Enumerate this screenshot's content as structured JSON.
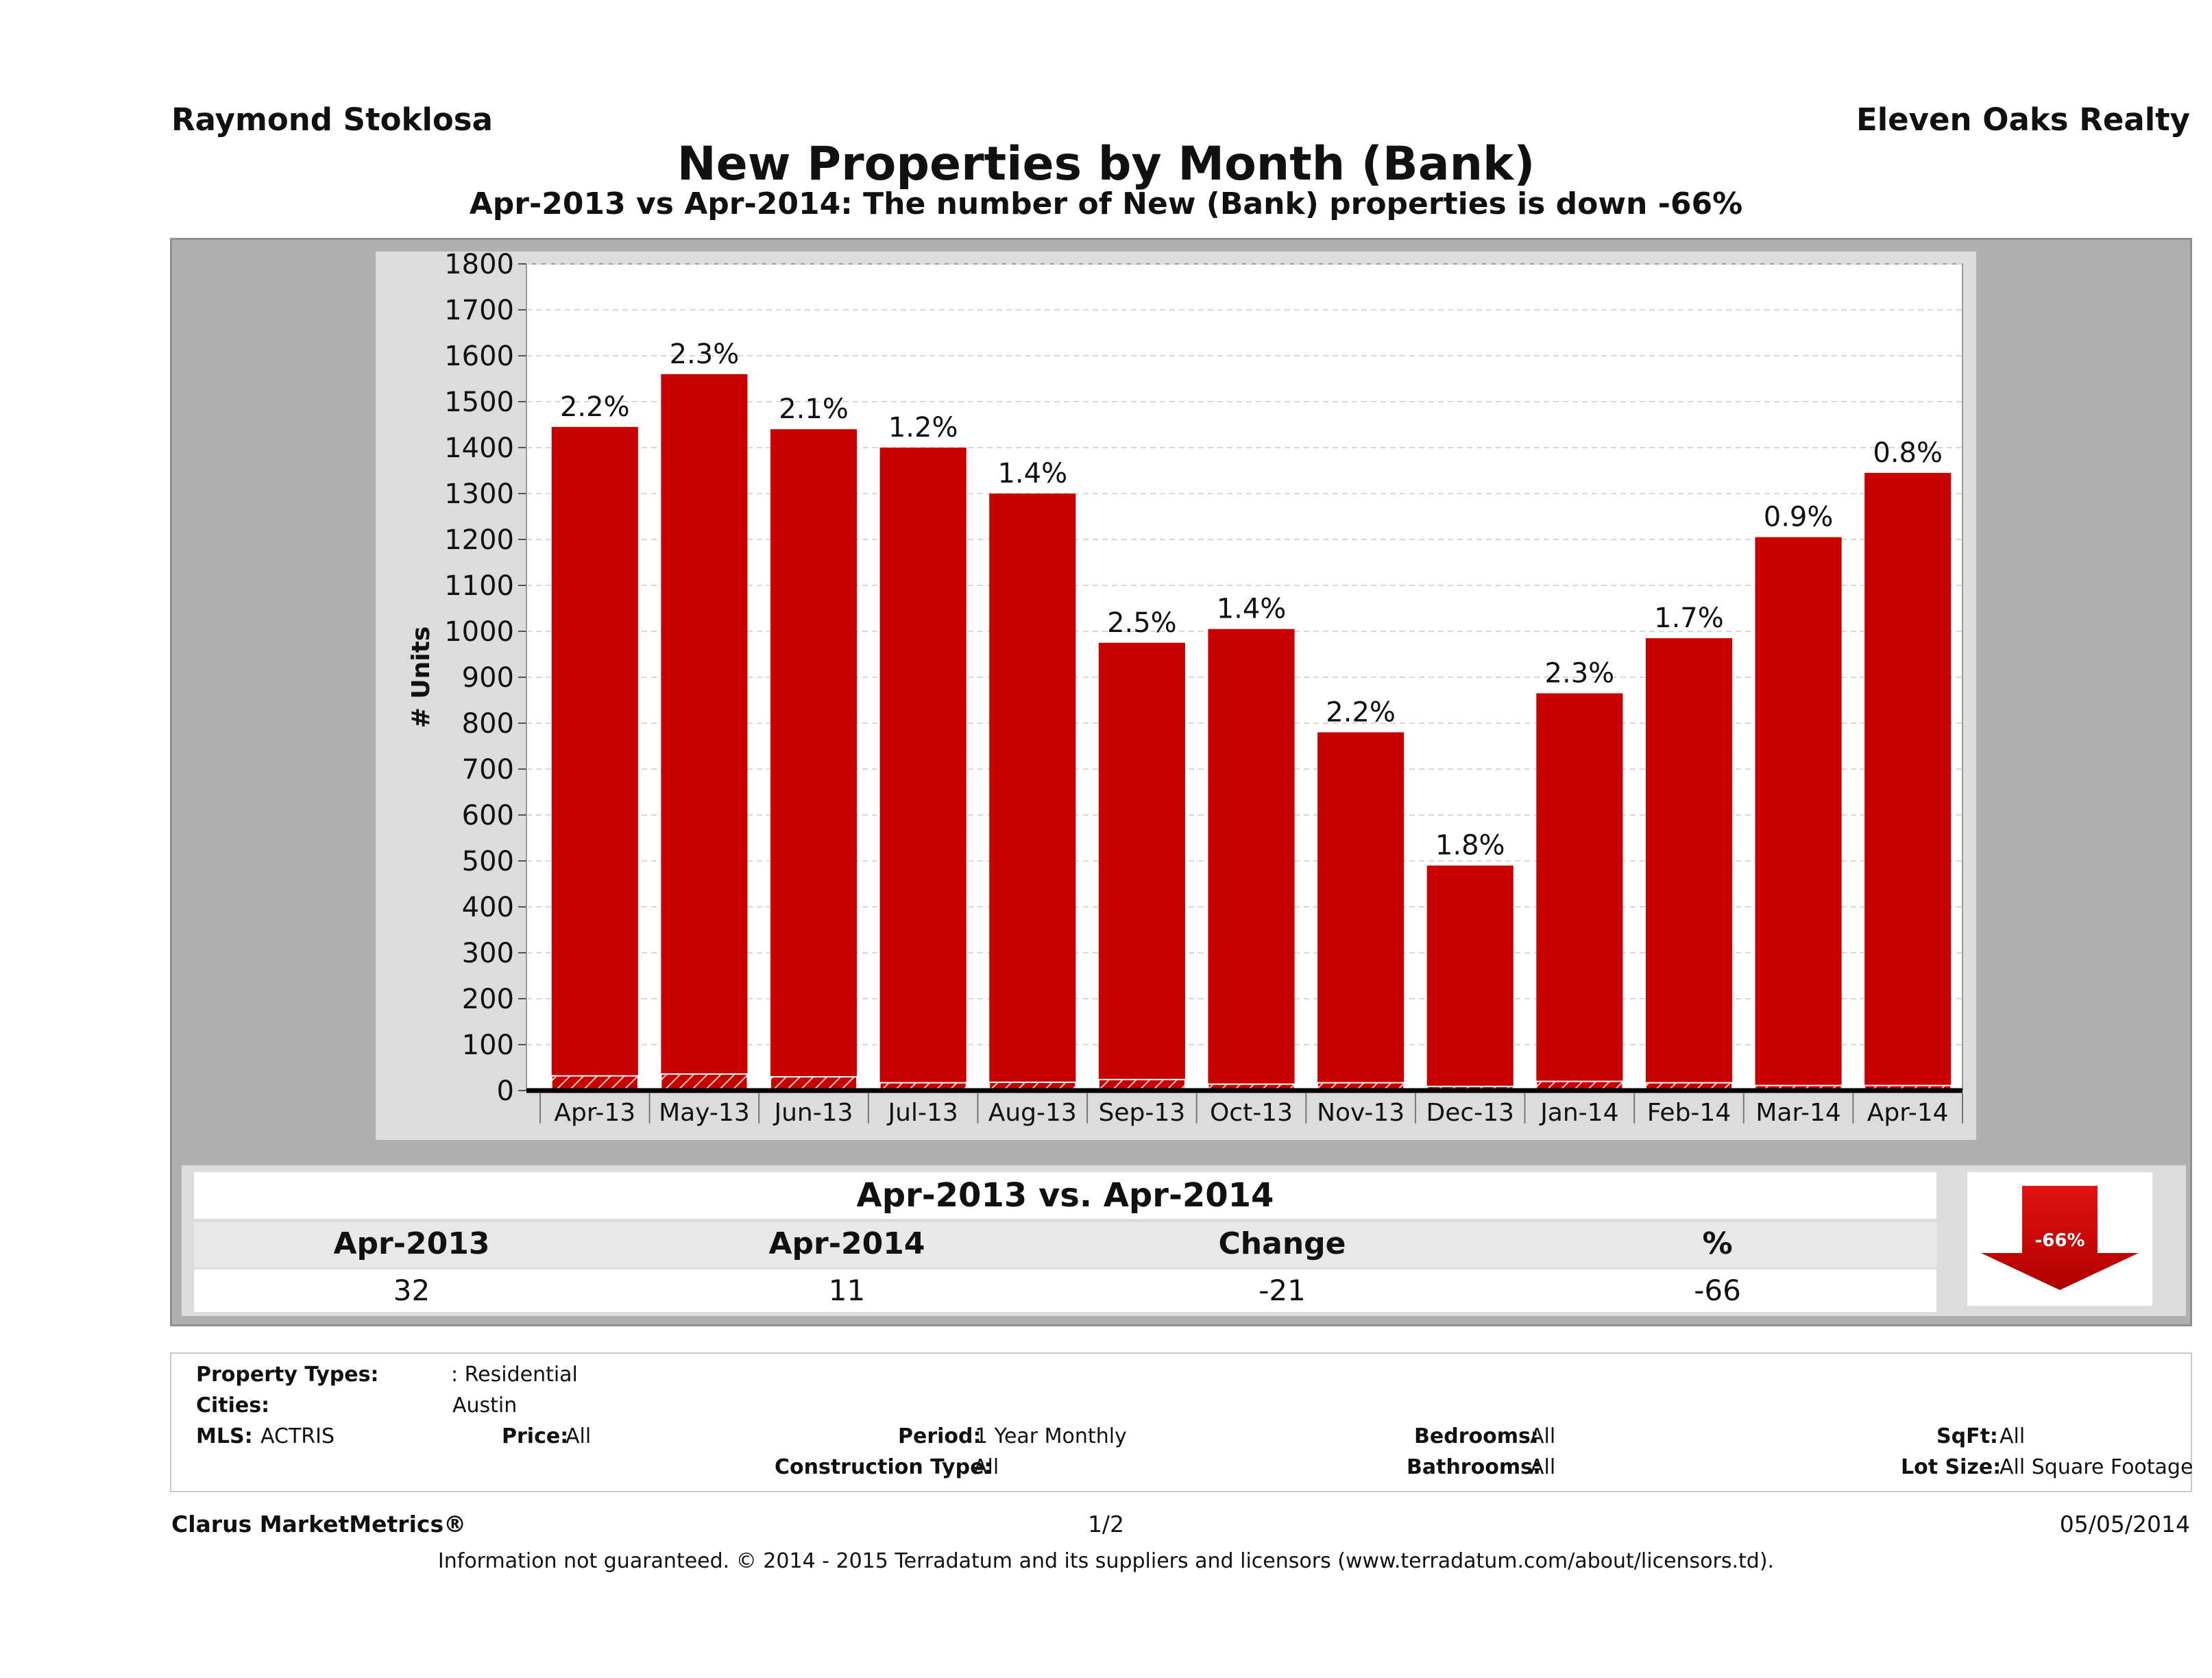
{
  "header": {
    "agent_name": "Raymond Stoklosa",
    "company_name": "Eleven Oaks Realty"
  },
  "chart_data": {
    "type": "bar",
    "title": "New Properties by Month (Bank)",
    "subtitle": "Apr-2013 vs Apr-2014: The number of New (Bank)  properties is down -66%",
    "xlabel": "",
    "ylabel": "# Units",
    "ylim": [
      0,
      1800
    ],
    "yticks": [
      0,
      100,
      200,
      300,
      400,
      500,
      600,
      700,
      800,
      900,
      1000,
      1100,
      1200,
      1300,
      1400,
      1500,
      1600,
      1700,
      1800
    ],
    "grid": true,
    "categories": [
      "Apr-13",
      "May-13",
      "Jun-13",
      "Jul-13",
      "Aug-13",
      "Sep-13",
      "Oct-13",
      "Nov-13",
      "Dec-13",
      "Jan-14",
      "Feb-14",
      "Mar-14",
      "Apr-14"
    ],
    "series": [
      {
        "values": [
          1445,
          1560,
          1440,
          1400,
          1300,
          975,
          1005,
          780,
          490,
          865,
          985,
          1205,
          1345
        ]
      },
      {
        "values": [
          32,
          36,
          30,
          17,
          18,
          24,
          14,
          17,
          9,
          20,
          17,
          11,
          11
        ]
      }
    ],
    "data_labels": [
      "2.2%",
      "2.3%",
      "2.1%",
      "1.2%",
      "1.4%",
      "2.5%",
      "1.4%",
      "2.2%",
      "1.8%",
      "2.3%",
      "1.7%",
      "0.9%",
      "0.8%"
    ],
    "colors": {
      "bar": "#c80000",
      "bank": "#c80000",
      "plot_bg": "#ffffff",
      "panel_bg": "#dcdcdc"
    }
  },
  "summary": {
    "title": "Apr-2013 vs. Apr-2014",
    "headers": [
      "Apr-2013",
      "Apr-2014",
      "Change",
      "%"
    ],
    "values": [
      "32",
      "11",
      "-21",
      "-66"
    ],
    "indicator_label": "-66%",
    "indicator_color": "#d40000"
  },
  "filters": {
    "property_types_label": "Property Types:",
    "property_types_value": ": Residential",
    "cities_label": "Cities:",
    "cities_value": "Austin",
    "mls_label": "MLS:",
    "mls_value": "ACTRIS",
    "price_label": "Price:",
    "price_value": "All",
    "period_label": "Period:",
    "period_value": "1 Year Monthly",
    "construction_label": "Construction Type:",
    "construction_value": "All",
    "bedrooms_label": "Bedrooms:",
    "bedrooms_value": "All",
    "bathrooms_label": "Bathrooms:",
    "bathrooms_value": "All",
    "sqft_label": "SqFt:",
    "sqft_value": "All",
    "lot_label": "Lot Size:",
    "lot_value": "All Square Footage"
  },
  "footer": {
    "brand": "Clarus MarketMetrics®",
    "page": "1/2",
    "date": "05/05/2014",
    "disclaimer": "Information not guaranteed. © 2014 - 2015 Terradatum and its suppliers and licensors (www.terradatum.com/about/licensors.td)."
  }
}
